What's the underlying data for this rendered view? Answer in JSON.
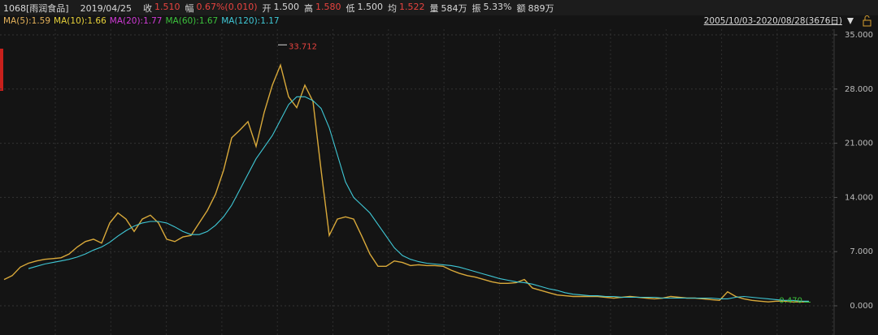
{
  "header": {
    "symbol": "1068[雨润食品]",
    "date": "2019/04/25",
    "quotes": [
      {
        "label": "收",
        "value": "1.510",
        "color": "#e8433f"
      },
      {
        "label": "幅",
        "value": "0.67%(0.010)",
        "color": "#e8433f"
      },
      {
        "label": "开",
        "value": "1.500",
        "color": "#d8d8d8"
      },
      {
        "label": "高",
        "value": "1.580",
        "color": "#e8433f"
      },
      {
        "label": "低",
        "value": "1.500",
        "color": "#d8d8d8"
      },
      {
        "label": "均",
        "value": "1.522",
        "color": "#e8433f"
      },
      {
        "label": "量",
        "value": "584万",
        "color": "#d8d8d8"
      },
      {
        "label": "振",
        "value": "5.33%",
        "color": "#d8d8d8"
      },
      {
        "label": "额",
        "value": "889万",
        "color": "#d8d8d8"
      }
    ],
    "range": "2005/10/03-2020/08/28(3676日)"
  },
  "chart_data": {
    "type": "line",
    "indicators": [
      {
        "name": "MA(5):1.59",
        "color": "#e6b35a"
      },
      {
        "name": "MA(10):1.66",
        "color": "#e8d23a"
      },
      {
        "name": "MA(20):1.77",
        "color": "#d23ad8"
      },
      {
        "name": "MA(60):1.67",
        "color": "#3cc23c"
      }
    ],
    "categories": [
      null,
      null,
      null,
      null,
      null,
      null,
      null,
      null,
      null,
      null,
      null,
      null,
      null,
      null,
      null,
      null,
      null,
      null,
      null,
      null,
      null,
      null,
      null,
      null,
      null,
      null,
      null,
      null,
      null,
      null,
      null,
      null,
      null,
      null,
      null,
      null,
      null,
      null,
      null,
      null,
      null,
      null,
      null,
      null,
      null,
      null,
      null,
      null,
      null,
      null,
      null,
      null,
      null,
      null,
      null,
      null,
      null,
      null,
      null,
      null,
      null,
      null,
      null,
      null,
      null,
      null,
      null,
      null,
      null,
      null,
      null,
      null,
      null,
      null,
      null,
      null,
      null,
      null,
      null,
      null,
      null,
      null,
      null,
      null,
      null,
      null,
      null,
      null,
      null,
      null,
      null,
      null,
      null,
      null,
      null,
      null,
      null,
      null,
      null,
      null
    ],
    "series": [
      {
        "name": "1068[雨润食品]",
        "color": "#d9a93a",
        "values": [
          3.4,
          3.9,
          5.0,
          5.5,
          5.8,
          6.0,
          6.1,
          6.2,
          6.7,
          7.6,
          8.3,
          8.6,
          8.1,
          10.7,
          12.0,
          11.2,
          9.6,
          11.2,
          11.7,
          10.7,
          8.6,
          8.3,
          8.9,
          9.1,
          10.7,
          12.3,
          14.4,
          17.5,
          21.7,
          22.7,
          23.8,
          20.6,
          25.0,
          28.5,
          31.1,
          27.0,
          25.6,
          28.5,
          26.4,
          17.5,
          9.1,
          11.2,
          11.5,
          11.2,
          9.0,
          6.7,
          5.1,
          5.1,
          5.8,
          5.6,
          5.2,
          5.3,
          5.2,
          5.2,
          5.1,
          4.6,
          4.2,
          3.9,
          3.7,
          3.4,
          3.1,
          2.9,
          2.9,
          3.0,
          3.4,
          2.3,
          2.0,
          1.7,
          1.4,
          1.3,
          1.2,
          1.2,
          1.2,
          1.2,
          1.1,
          1.0,
          1.1,
          1.2,
          1.1,
          1.0,
          0.9,
          1.0,
          1.2,
          1.1,
          1.0,
          1.0,
          0.9,
          0.8,
          0.7,
          1.8,
          1.2,
          0.9,
          0.7,
          0.6,
          0.5,
          0.6,
          0.6,
          0.5,
          0.5,
          0.5
        ]
      },
      {
        "name": "MA(120):1.17",
        "color": "#3fc8d6",
        "values": [
          null,
          null,
          null,
          4.8,
          5.1,
          5.4,
          5.6,
          5.8,
          6.0,
          6.3,
          6.7,
          7.2,
          7.6,
          8.2,
          9.0,
          9.7,
          10.3,
          10.7,
          10.9,
          10.9,
          10.7,
          10.2,
          9.6,
          9.2,
          9.2,
          9.6,
          10.4,
          11.5,
          13.0,
          15.0,
          17.0,
          19.0,
          20.5,
          22.0,
          24.0,
          26.0,
          27.0,
          27.0,
          26.5,
          25.5,
          23.0,
          19.5,
          16.0,
          14.0,
          13.0,
          12.0,
          10.5,
          9.0,
          7.5,
          6.5,
          6.0,
          5.7,
          5.5,
          5.4,
          5.3,
          5.2,
          5.0,
          4.7,
          4.4,
          4.1,
          3.8,
          3.5,
          3.3,
          3.1,
          3.0,
          2.8,
          2.5,
          2.2,
          2.0,
          1.7,
          1.5,
          1.4,
          1.3,
          1.3,
          1.2,
          1.2,
          1.1,
          1.1,
          1.1,
          1.1,
          1.1,
          1.0,
          1.0,
          1.0,
          1.0,
          1.0,
          1.0,
          1.0,
          0.9,
          0.9,
          1.1,
          1.2,
          1.1,
          1.0,
          0.9,
          0.8,
          0.7,
          0.7,
          0.6,
          0.6
        ]
      }
    ],
    "annotations": {
      "high": 33.712,
      "low": {
        "value": 0.47,
        "label": "0.470"
      }
    },
    "ylim": [
      0,
      35
    ],
    "yticks": [
      {
        "value": 0,
        "label": "0.000"
      },
      {
        "value": 7,
        "label": "7.000"
      },
      {
        "value": 14,
        "label": "14.000"
      },
      {
        "value": 21,
        "label": "21.000"
      },
      {
        "value": 28,
        "label": "28.000"
      },
      {
        "value": 35,
        "label": "35.000"
      }
    ],
    "grid": true
  }
}
